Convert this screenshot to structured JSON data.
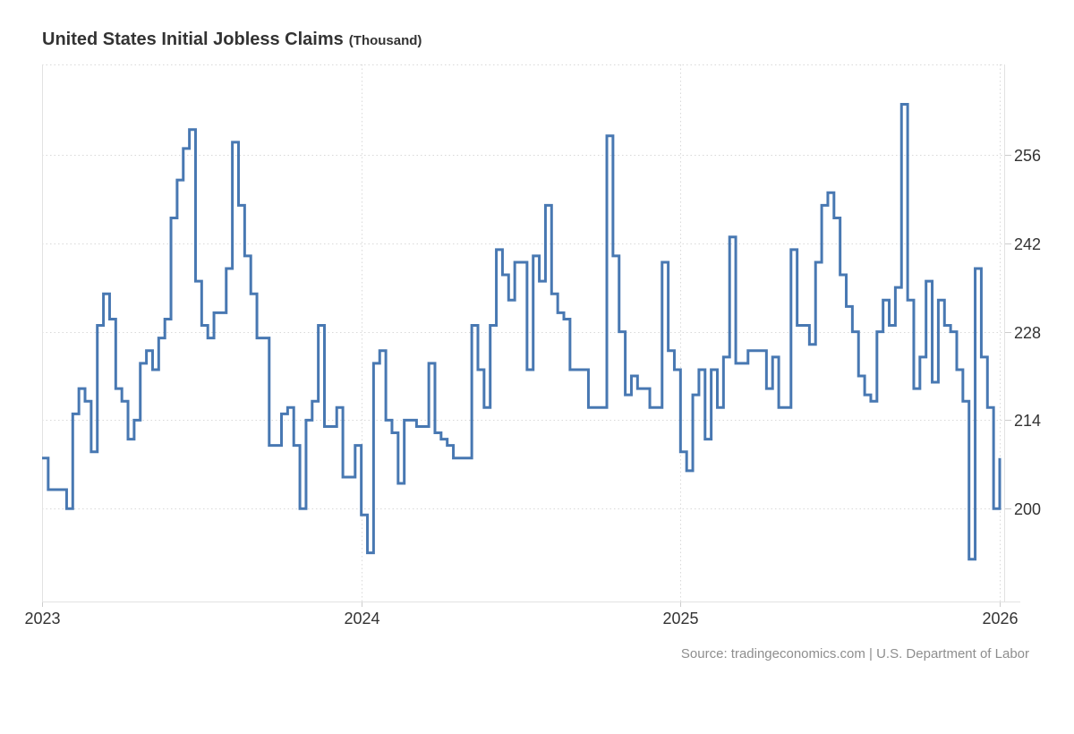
{
  "header": {
    "title": "United States Initial Jobless Claims",
    "unit": "(Thousand)"
  },
  "source": {
    "text": "Source: tradingeconomics.com | U.S. Department of Labor"
  },
  "chart_data": {
    "type": "line",
    "step": true,
    "title": "United States Initial Jobless Claims",
    "ylabel": "Thousand",
    "xlabel": "",
    "grid": true,
    "legend": false,
    "line_color": "#4878b2",
    "grid_color": "#d9d9d9",
    "axis_border_color": "#e2e2e2",
    "tick_color": "#cccccc",
    "label_color": "#333333",
    "x_tick_labels": [
      "2023",
      "2024",
      "2025",
      "2026"
    ],
    "y_ticks": [
      200,
      214,
      228,
      242,
      256
    ],
    "ylim": [
      185.3,
      270.3
    ],
    "x_frequency": "weekly",
    "x_start_year": 2023,
    "values": [
      208,
      203,
      203,
      203,
      200,
      215,
      219,
      217,
      209,
      229,
      234,
      230,
      219,
      217,
      211,
      214,
      223,
      225,
      222,
      227,
      230,
      246,
      252,
      257,
      260,
      236,
      229,
      227,
      231,
      231,
      238,
      258,
      248,
      240,
      234,
      227,
      227,
      210,
      210,
      215,
      216,
      210,
      200,
      214,
      217,
      229,
      213,
      213,
      216,
      205,
      205,
      210,
      199,
      193,
      223,
      225,
      214,
      212,
      204,
      214,
      214,
      213,
      213,
      223,
      212,
      211,
      210,
      208,
      208,
      208,
      229,
      222,
      216,
      229,
      241,
      237,
      233,
      239,
      239,
      222,
      240,
      236,
      248,
      234,
      231,
      230,
      222,
      222,
      222,
      216,
      216,
      216,
      259,
      240,
      228,
      218,
      221,
      219,
      219,
      216,
      216,
      239,
      225,
      222,
      209,
      206,
      218,
      222,
      211,
      222,
      216,
      224,
      243,
      223,
      223,
      225,
      225,
      225,
      219,
      224,
      216,
      216,
      241,
      229,
      229,
      226,
      239,
      248,
      250,
      246,
      237,
      232,
      228,
      221,
      218,
      217,
      228,
      233,
      229,
      235,
      264,
      233,
      219,
      224,
      236,
      220,
      233,
      229,
      228,
      222,
      217,
      192,
      238,
      224,
      216,
      200,
      208
    ]
  }
}
